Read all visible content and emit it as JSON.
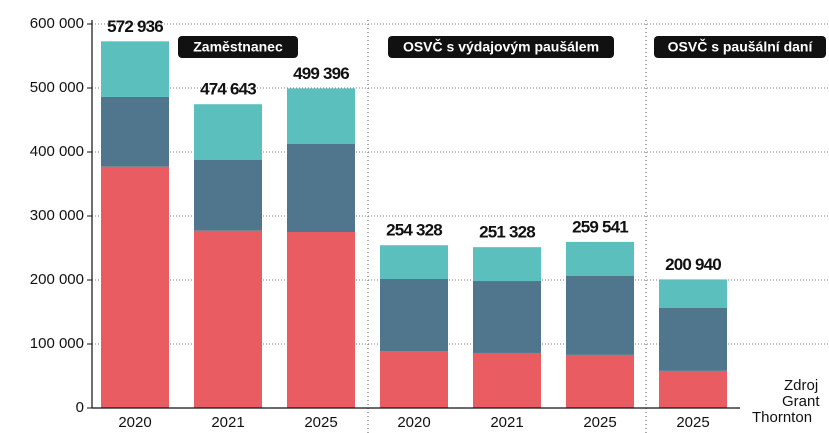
{
  "chart_data": {
    "type": "stacked_bar",
    "categories": [
      "2020",
      "2021",
      "2025",
      "2020",
      "2021",
      "2025",
      "2025"
    ],
    "series": [
      {
        "color": "#e85c62",
        "values": [
          377000,
          277000,
          275000,
          89000,
          86000,
          83000,
          58000
        ]
      },
      {
        "color": "#50768e",
        "values": [
          109000,
          110500,
          137500,
          112600,
          112400,
          123250,
          98250
        ]
      },
      {
        "color": "#5bbfbd",
        "values": [
          86936,
          87143,
          86896,
          52728,
          52928,
          53291,
          44690
        ]
      }
    ],
    "totals": [
      572936,
      474643,
      499396,
      254328,
      251328,
      259541,
      200940
    ],
    "total_labels": [
      "572 936",
      "474 643",
      "499 396",
      "254 328",
      "251 328",
      "259 541",
      "200 940"
    ],
    "groups": [
      "Zaměstnanec",
      "OSVČ s výdajovým paušálem",
      "OSVČ s paušální daní"
    ],
    "source": [
      "Zdroj",
      "Grant",
      "Thornton"
    ],
    "ylim": [
      0,
      600000
    ],
    "yticks": [
      0,
      {
        "value": 100000,
        "label": "100 000"
      },
      {
        "value": 200000,
        "label": "200 000"
      },
      {
        "value": 300000,
        "label": "300 000"
      },
      {
        "value": 400000,
        "label": "400 000"
      },
      {
        "value": 500000,
        "label": "500 000"
      },
      {
        "value": 600000,
        "label": "600 000"
      }
    ],
    "grid": true
  }
}
